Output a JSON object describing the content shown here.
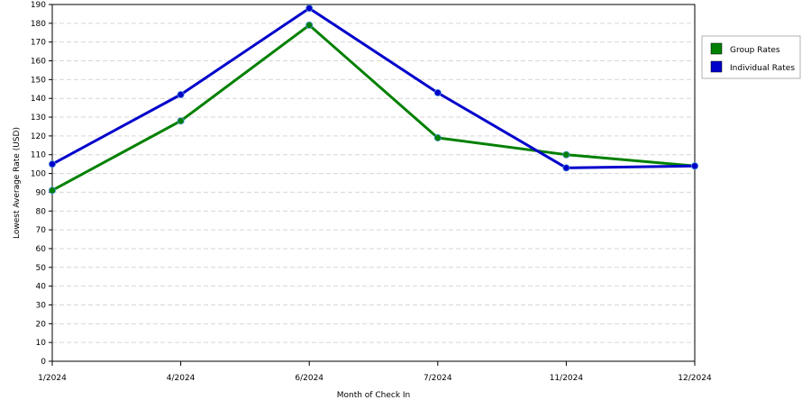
{
  "chart_data": {
    "type": "line",
    "categories": [
      "1/2024",
      "4/2024",
      "6/2024",
      "7/2024",
      "11/2024",
      "12/2024"
    ],
    "series": [
      {
        "name": "Group Rates",
        "color": "#008000",
        "values": [
          91,
          128,
          179,
          119,
          110,
          104
        ]
      },
      {
        "name": "Individual Rates",
        "color": "#0000cc",
        "values": [
          105,
          142,
          188,
          143,
          103,
          104
        ]
      }
    ],
    "xlabel": "Month of Check In",
    "ylabel": "Lowest Average Rate (USD)",
    "ylim": [
      0,
      190
    ],
    "yticks": [
      0,
      10,
      20,
      30,
      40,
      50,
      60,
      70,
      80,
      90,
      100,
      110,
      120,
      130,
      140,
      150,
      160,
      170,
      180,
      190
    ],
    "grid": true,
    "legend_position": "top-right"
  }
}
